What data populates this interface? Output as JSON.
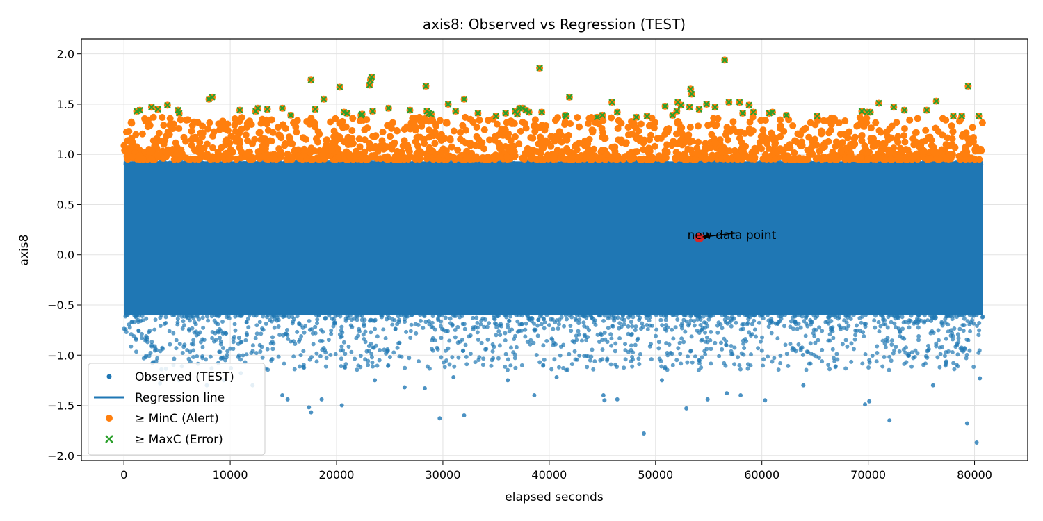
{
  "chart_data": {
    "type": "scatter",
    "title": "axis8: Observed vs Regression (TEST)",
    "xlabel": "elapsed seconds",
    "ylabel": "axis8",
    "xlim": [
      -4000,
      85000
    ],
    "ylim": [
      -2.05,
      2.15
    ],
    "xticks": [
      0,
      10000,
      20000,
      30000,
      40000,
      50000,
      60000,
      70000,
      80000
    ],
    "xtick_labels": [
      "0",
      "10000",
      "20000",
      "30000",
      "40000",
      "50000",
      "60000",
      "70000",
      "80000"
    ],
    "yticks": [
      -2.0,
      -1.5,
      -1.0,
      -0.5,
      0.0,
      0.5,
      1.0,
      1.5,
      2.0
    ],
    "ytick_labels": [
      "−2.0",
      "−1.5",
      "−1.0",
      "−0.5",
      "0.0",
      "0.5",
      "1.0",
      "1.5",
      "2.0"
    ],
    "grid": true,
    "legend_position": "lower-left",
    "colors": {
      "observed": "#1f77b4",
      "regression": "#1f77b4",
      "alert": "#ff7f0e",
      "error": "#2ca02c",
      "new_point": "#d62728"
    },
    "x_data_range": [
      0,
      80800
    ],
    "observed_band": {
      "dense_min": -0.6,
      "dense_max": 0.93
    },
    "alert_threshold": 0.95,
    "error_threshold": 1.37,
    "series": [
      {
        "name": "Observed (TEST)",
        "marker": "circle"
      },
      {
        "name": "Regression line",
        "marker": "line"
      },
      {
        "name": "≥ MinC (Alert)",
        "marker": "circle"
      },
      {
        "name": "≥ MaxC (Error)",
        "marker": "x"
      }
    ],
    "observed_outliers_low": [
      [
        1500,
        -1.42
      ],
      [
        3400,
        -1.28
      ],
      [
        5200,
        -1.25
      ],
      [
        7800,
        -1.3
      ],
      [
        9400,
        -1.25
      ],
      [
        11000,
        -1.18
      ],
      [
        12100,
        -1.3
      ],
      [
        14900,
        -1.4
      ],
      [
        15400,
        -1.44
      ],
      [
        17400,
        -1.52
      ],
      [
        17600,
        -1.57
      ],
      [
        18600,
        -1.44
      ],
      [
        20500,
        -1.5
      ],
      [
        23600,
        -1.25
      ],
      [
        26400,
        -1.32
      ],
      [
        28300,
        -1.33
      ],
      [
        29700,
        -1.63
      ],
      [
        31000,
        -1.22
      ],
      [
        32000,
        -1.6
      ],
      [
        36100,
        -1.25
      ],
      [
        38600,
        -1.4
      ],
      [
        40700,
        -1.22
      ],
      [
        45100,
        -1.4
      ],
      [
        45200,
        -1.45
      ],
      [
        46400,
        -1.44
      ],
      [
        48900,
        -1.78
      ],
      [
        50600,
        -1.25
      ],
      [
        52900,
        -1.53
      ],
      [
        54900,
        -1.44
      ],
      [
        56700,
        -1.38
      ],
      [
        58000,
        -1.4
      ],
      [
        60300,
        -1.45
      ],
      [
        63900,
        -1.3
      ],
      [
        69700,
        -1.49
      ],
      [
        70100,
        -1.46
      ],
      [
        72000,
        -1.65
      ],
      [
        76100,
        -1.3
      ],
      [
        79300,
        -1.68
      ],
      [
        80200,
        -1.87
      ],
      [
        80500,
        -1.23
      ]
    ],
    "error_points": [
      [
        1200,
        1.43
      ],
      [
        1500,
        1.44
      ],
      [
        2600,
        1.47
      ],
      [
        3200,
        1.45
      ],
      [
        4100,
        1.49
      ],
      [
        5100,
        1.44
      ],
      [
        5200,
        1.41
      ],
      [
        8000,
        1.55
      ],
      [
        8300,
        1.57
      ],
      [
        10900,
        1.44
      ],
      [
        12400,
        1.43
      ],
      [
        12600,
        1.46
      ],
      [
        13500,
        1.45
      ],
      [
        14900,
        1.46
      ],
      [
        15700,
        1.39
      ],
      [
        17600,
        1.74
      ],
      [
        18000,
        1.45
      ],
      [
        18800,
        1.55
      ],
      [
        20300,
        1.67
      ],
      [
        20700,
        1.42
      ],
      [
        21000,
        1.41
      ],
      [
        22300,
        1.39
      ],
      [
        22400,
        1.4
      ],
      [
        23100,
        1.69
      ],
      [
        23200,
        1.74
      ],
      [
        23300,
        1.77
      ],
      [
        23400,
        1.43
      ],
      [
        24900,
        1.46
      ],
      [
        26900,
        1.44
      ],
      [
        28400,
        1.68
      ],
      [
        28500,
        1.43
      ],
      [
        28700,
        1.41
      ],
      [
        28900,
        1.4
      ],
      [
        30500,
        1.5
      ],
      [
        31200,
        1.43
      ],
      [
        32000,
        1.55
      ],
      [
        33300,
        1.41
      ],
      [
        35000,
        1.38
      ],
      [
        35900,
        1.41
      ],
      [
        36800,
        1.43
      ],
      [
        37000,
        1.4
      ],
      [
        37200,
        1.46
      ],
      [
        37500,
        1.46
      ],
      [
        37800,
        1.44
      ],
      [
        38100,
        1.42
      ],
      [
        39100,
        1.86
      ],
      [
        39300,
        1.42
      ],
      [
        41500,
        1.39
      ],
      [
        41600,
        1.38
      ],
      [
        41900,
        1.57
      ],
      [
        44500,
        1.37
      ],
      [
        45000,
        1.39
      ],
      [
        45900,
        1.52
      ],
      [
        46400,
        1.42
      ],
      [
        48200,
        1.37
      ],
      [
        49200,
        1.38
      ],
      [
        50900,
        1.48
      ],
      [
        51600,
        1.39
      ],
      [
        52000,
        1.43
      ],
      [
        52100,
        1.52
      ],
      [
        52400,
        1.49
      ],
      [
        53200,
        1.47
      ],
      [
        53300,
        1.65
      ],
      [
        53400,
        1.6
      ],
      [
        54100,
        1.45
      ],
      [
        54800,
        1.5
      ],
      [
        55600,
        1.47
      ],
      [
        56500,
        1.94
      ],
      [
        56900,
        1.52
      ],
      [
        57900,
        1.52
      ],
      [
        58200,
        1.41
      ],
      [
        58800,
        1.49
      ],
      [
        59200,
        1.42
      ],
      [
        60700,
        1.41
      ],
      [
        61000,
        1.42
      ],
      [
        62300,
        1.39
      ],
      [
        65200,
        1.38
      ],
      [
        69400,
        1.43
      ],
      [
        69900,
        1.42
      ],
      [
        70200,
        1.42
      ],
      [
        71000,
        1.51
      ],
      [
        72400,
        1.47
      ],
      [
        73400,
        1.44
      ],
      [
        75500,
        1.44
      ],
      [
        76400,
        1.53
      ],
      [
        78000,
        1.38
      ],
      [
        78800,
        1.38
      ],
      [
        79400,
        1.68
      ],
      [
        80400,
        1.38
      ]
    ],
    "new_point": {
      "x": 54100,
      "y": 0.17,
      "label": "new data point",
      "text_x": 53000,
      "text_y": 0.2
    }
  }
}
